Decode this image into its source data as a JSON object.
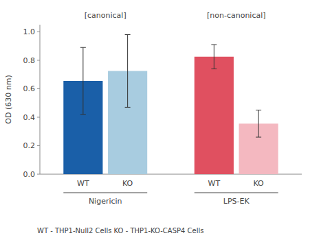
{
  "chart_data": {
    "type": "bar",
    "y_label": "OD (630 nm)",
    "categories": [
      "Nigericin",
      "LPS-EK"
    ],
    "series": [
      {
        "name": "WT",
        "colors": [
          "#1a5fa8",
          "#e05060"
        ],
        "values": [
          0.655,
          0.825
        ],
        "errors": [
          0.235,
          0.085
        ]
      },
      {
        "name": "KO",
        "colors": [
          "#a8cce0",
          "#f4b8c0"
        ],
        "values": [
          0.725,
          0.355
        ],
        "errors": [
          0.255,
          0.095
        ]
      }
    ],
    "ylim": [
      0.0,
      1.05
    ],
    "yticks": [
      {
        "value": 0.0,
        "label": "0.0"
      },
      0.2,
      0.4,
      0.6,
      0.8,
      {
        "value": 1.0,
        "label": "1.0"
      }
    ],
    "annotations": [
      "[canonical]",
      "[non-canonical]"
    ],
    "footnote": "WT - THP1-Null2 Cells    KO - THP1-KO-CASP4 Cells",
    "grid": false
  }
}
